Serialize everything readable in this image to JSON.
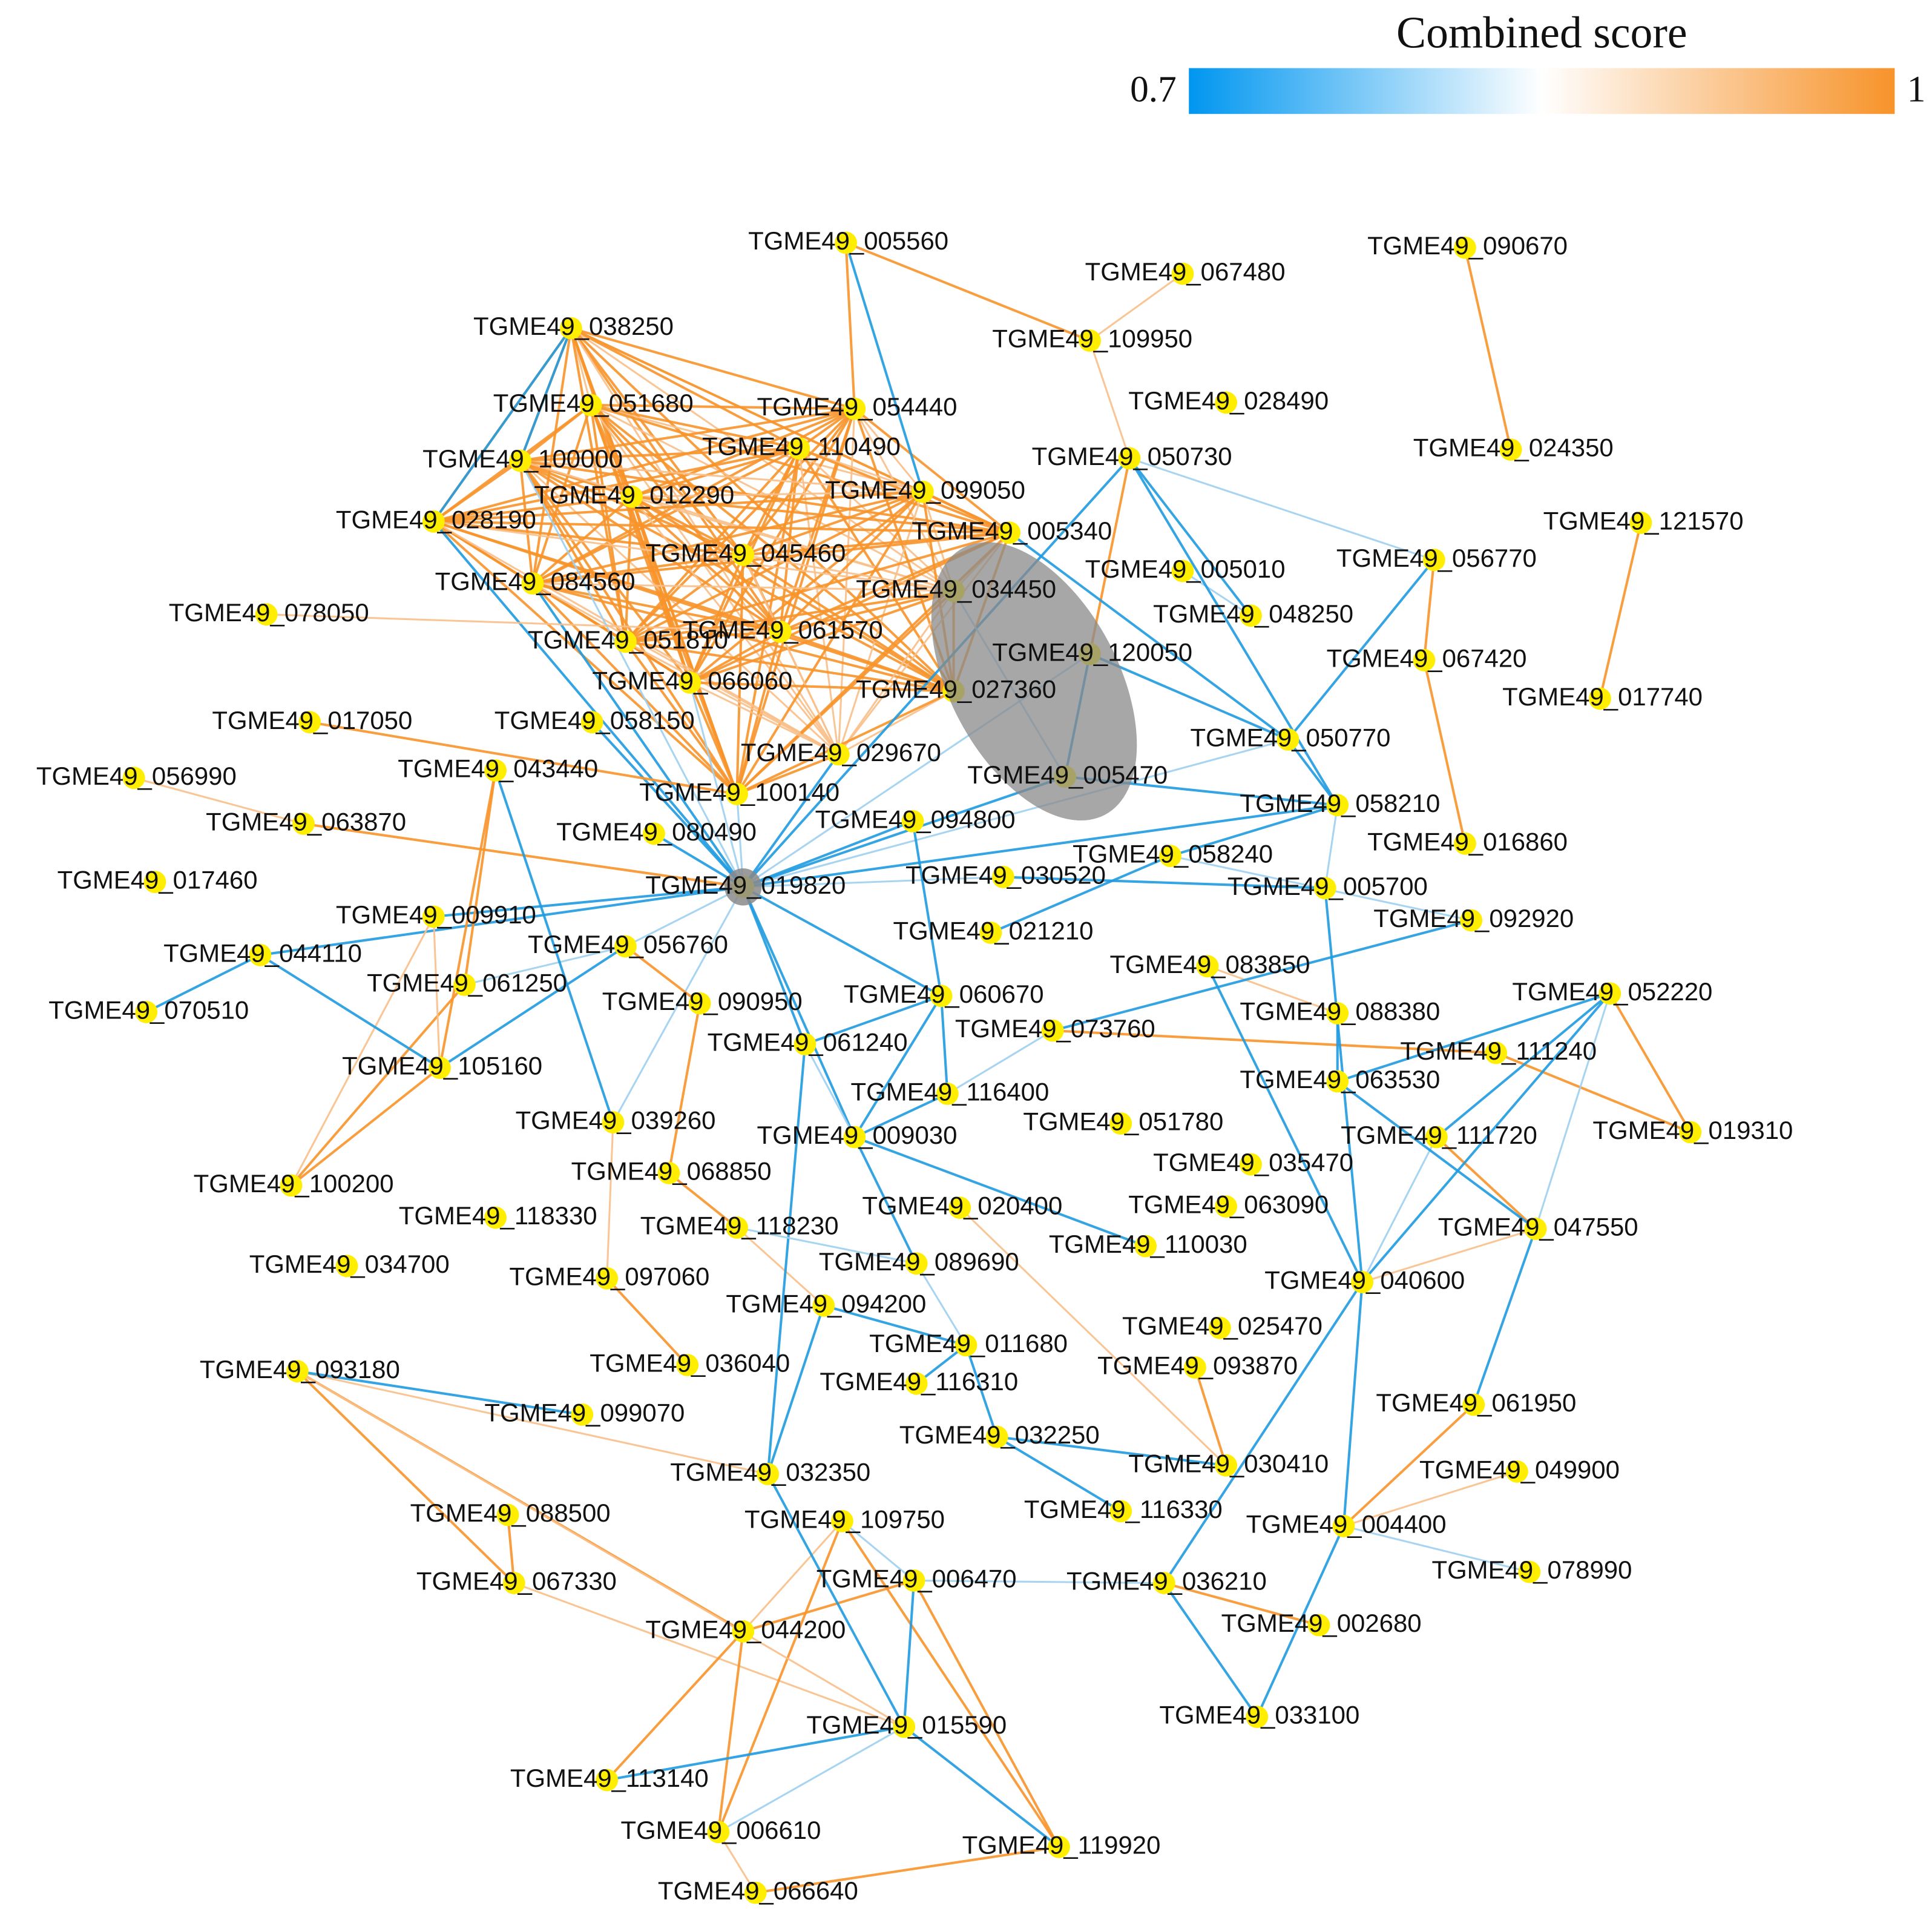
{
  "legend": {
    "title": "Combined score",
    "min_label": "0.7",
    "max_label": "1"
  },
  "nodes": [
    {
      "label": "TGME49_005560"
    },
    {
      "label": "TGME49_067480"
    },
    {
      "label": "TGME49_090670"
    },
    {
      "label": "TGME49_038250"
    },
    {
      "label": "TGME49_109950"
    },
    {
      "label": "TGME49_028490"
    },
    {
      "label": "TGME49_051680"
    },
    {
      "label": "TGME49_054440"
    },
    {
      "label": "TGME49_110490"
    },
    {
      "label": "TGME49_024350"
    },
    {
      "label": "TGME49_100000"
    },
    {
      "label": "TGME49_050730"
    },
    {
      "label": "TGME49_012290"
    },
    {
      "label": "TGME49_099050"
    },
    {
      "label": "TGME49_028190"
    },
    {
      "label": "TGME49_121570"
    },
    {
      "label": "TGME49_005340"
    },
    {
      "label": "TGME49_045460"
    },
    {
      "label": "TGME49_005010"
    },
    {
      "label": "TGME49_056770"
    },
    {
      "label": "TGME49_084560"
    },
    {
      "label": "TGME49_034450"
    },
    {
      "label": "TGME49_078050"
    },
    {
      "label": "TGME49_048250"
    },
    {
      "label": "TGME49_051810"
    },
    {
      "label": "TGME49_061570"
    },
    {
      "label": "TGME49_120050"
    },
    {
      "label": "TGME49_067420"
    },
    {
      "label": "TGME49_066060"
    },
    {
      "label": "TGME49_017740"
    },
    {
      "label": "TGME49_027360"
    },
    {
      "label": "TGME49_017050"
    },
    {
      "label": "TGME49_058150"
    },
    {
      "label": "TGME49_050770"
    },
    {
      "label": "TGME49_029670"
    },
    {
      "label": "TGME49_056990"
    },
    {
      "label": "TGME49_043440"
    },
    {
      "label": "TGME49_005470"
    },
    {
      "label": "TGME49_100140"
    },
    {
      "label": "TGME49_058210"
    },
    {
      "label": "TGME49_063870"
    },
    {
      "label": "TGME49_094800"
    },
    {
      "label": "TGME49_080490"
    },
    {
      "label": "TGME49_016860"
    },
    {
      "label": "TGME49_058240"
    },
    {
      "label": "TGME49_017460"
    },
    {
      "label": "TGME49_019820"
    },
    {
      "label": "TGME49_030520"
    },
    {
      "label": "TGME49_005700"
    },
    {
      "label": "TGME49_009910"
    },
    {
      "label": "TGME49_092920"
    },
    {
      "label": "TGME49_044110"
    },
    {
      "label": "TGME49_056760"
    },
    {
      "label": "TGME49_021210"
    },
    {
      "label": "TGME49_083850"
    },
    {
      "label": "TGME49_061250"
    },
    {
      "label": "TGME49_052220"
    },
    {
      "label": "TGME49_090950"
    },
    {
      "label": "TGME49_060670"
    },
    {
      "label": "TGME49_070510"
    },
    {
      "label": "TGME49_088380"
    },
    {
      "label": "TGME49_073760"
    },
    {
      "label": "TGME49_111240"
    },
    {
      "label": "TGME49_061240"
    },
    {
      "label": "TGME49_105160"
    },
    {
      "label": "TGME49_063530"
    },
    {
      "label": "TGME49_116400"
    },
    {
      "label": "TGME49_019310"
    },
    {
      "label": "TGME49_039260"
    },
    {
      "label": "TGME49_051780"
    },
    {
      "label": "TGME49_111720"
    },
    {
      "label": "TGME49_009030"
    },
    {
      "label": "TGME49_035470"
    },
    {
      "label": "TGME49_068850"
    },
    {
      "label": "TGME49_100200"
    },
    {
      "label": "TGME49_020400"
    },
    {
      "label": "TGME49_063090"
    },
    {
      "label": "TGME49_118330"
    },
    {
      "label": "TGME49_047550"
    },
    {
      "label": "TGME49_118230"
    },
    {
      "label": "TGME49_110030"
    },
    {
      "label": "TGME49_034700"
    },
    {
      "label": "TGME49_040600"
    },
    {
      "label": "TGME49_089690"
    },
    {
      "label": "TGME49_097060"
    },
    {
      "label": "TGME49_094200"
    },
    {
      "label": "TGME49_025470"
    },
    {
      "label": "TGME49_011680"
    },
    {
      "label": "TGME49_036040"
    },
    {
      "label": "TGME49_093180"
    },
    {
      "label": "TGME49_093870"
    },
    {
      "label": "TGME49_116310"
    },
    {
      "label": "TGME49_099070"
    },
    {
      "label": "TGME49_061950"
    },
    {
      "label": "TGME49_032250"
    },
    {
      "label": "TGME49_030410"
    },
    {
      "label": "TGME49_032350"
    },
    {
      "label": "TGME49_049900"
    },
    {
      "label": "TGME49_116330"
    },
    {
      "label": "TGME49_004400"
    },
    {
      "label": "TGME49_109750"
    },
    {
      "label": "TGME49_088500"
    },
    {
      "label": "TGME49_078990"
    },
    {
      "label": "TGME49_067330"
    },
    {
      "label": "TGME49_006470"
    },
    {
      "label": "TGME49_036210"
    },
    {
      "label": "TGME49_002680"
    },
    {
      "label": "TGME49_044200"
    },
    {
      "label": "TGME49_033100"
    },
    {
      "label": "TGME49_015590"
    },
    {
      "label": "TGME49_113140"
    },
    {
      "label": "TGME49_006610"
    },
    {
      "label": "TGME49_119920"
    },
    {
      "label": "TGME49_066640"
    }
  ]
}
